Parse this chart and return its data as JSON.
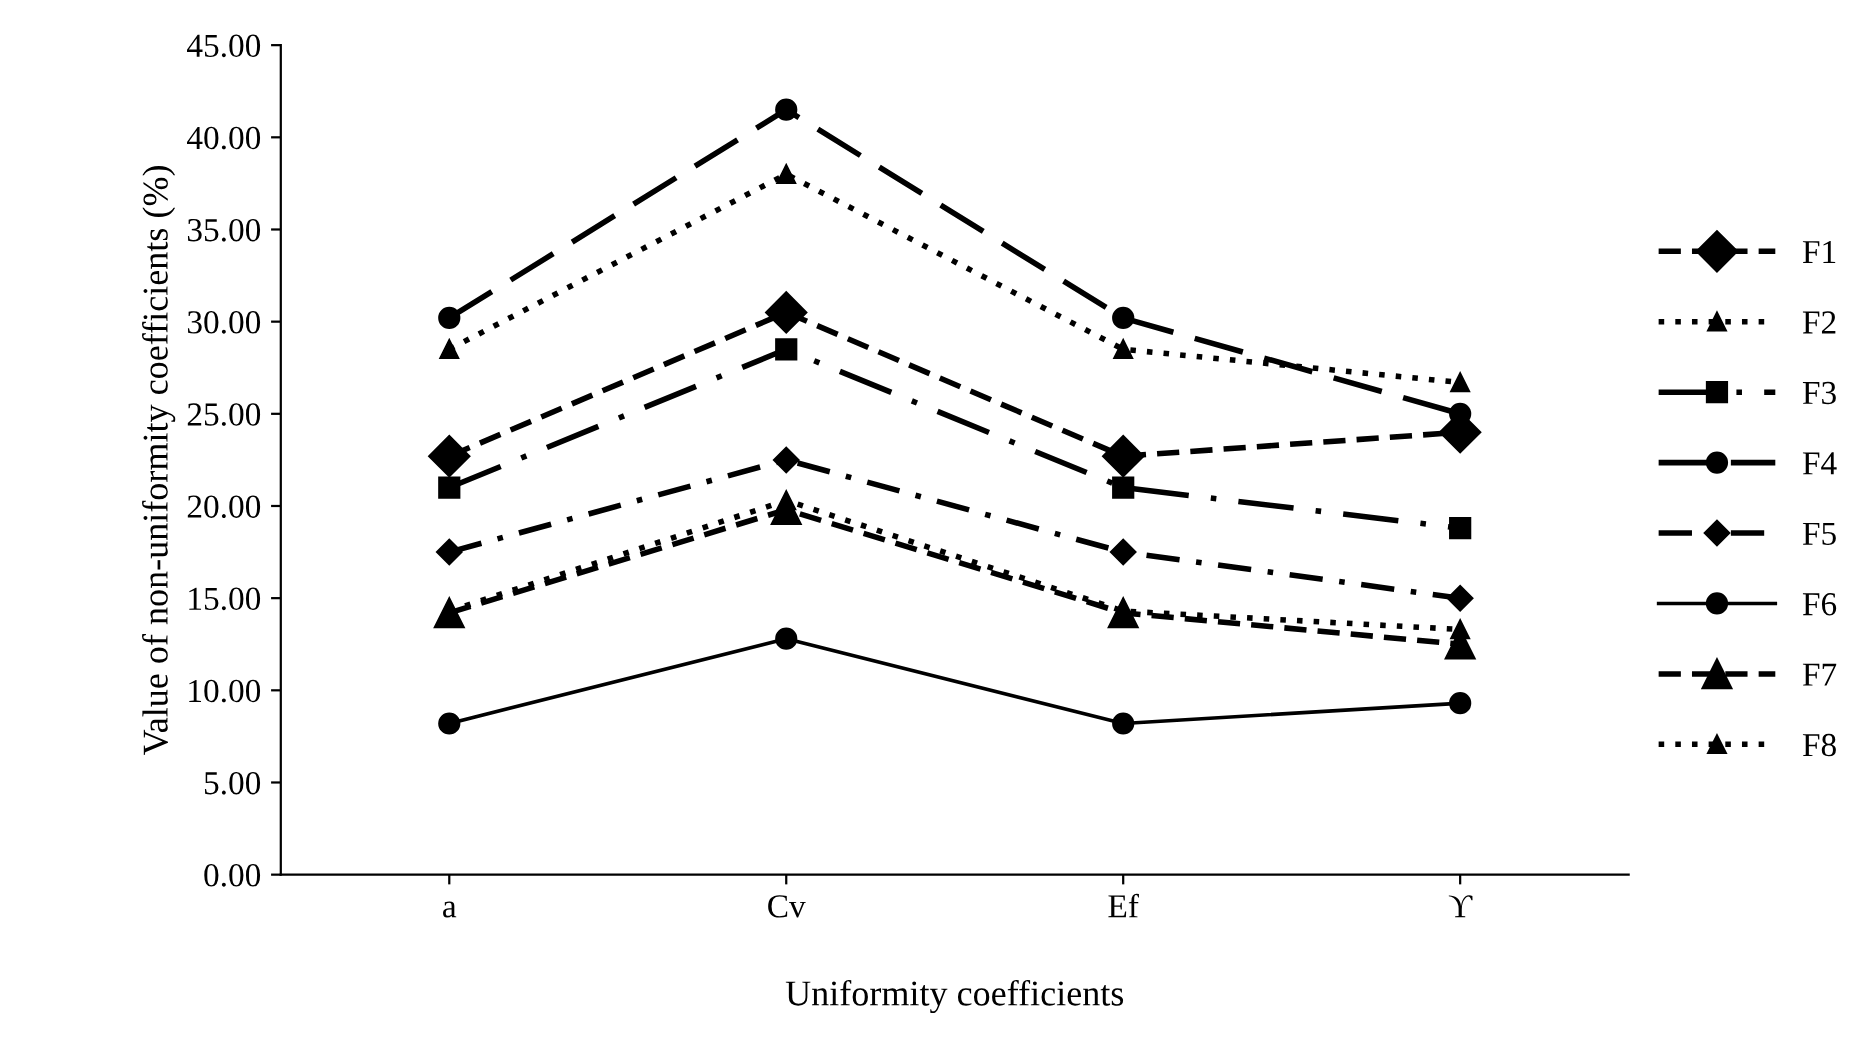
{
  "chart_data": {
    "type": "line",
    "xlabel": "Uniformity coefficients",
    "ylabel": "Value of non-uniformity coefficients (%)",
    "categories": [
      "a",
      "Cv",
      "Ef",
      "ϒ"
    ],
    "series": [
      {
        "name": "F1",
        "color": "#000000",
        "values": [
          22.7,
          30.5,
          22.7,
          24.0
        ],
        "marker": "diamond",
        "line_style": "dashed"
      },
      {
        "name": "F2",
        "color": "#000000",
        "values": [
          28.5,
          38.0,
          28.5,
          26.7
        ],
        "marker": "triangle",
        "line_style": "dotted"
      },
      {
        "name": "F3",
        "color": "#000000",
        "values": [
          21.0,
          28.5,
          21.0,
          18.8
        ],
        "marker": "square",
        "line_style": "longdashdot"
      },
      {
        "name": "F4",
        "color": "#000000",
        "values": [
          30.2,
          41.5,
          30.2,
          25.0
        ],
        "marker": "circle",
        "line_style": "longdash"
      },
      {
        "name": "F5",
        "color": "#000000",
        "values": [
          17.5,
          22.5,
          17.5,
          15.0
        ],
        "marker": "diamond",
        "line_style": "dashdot"
      },
      {
        "name": "F6",
        "color": "#000000",
        "values": [
          8.2,
          12.8,
          8.2,
          9.3
        ],
        "marker": "circle",
        "line_style": "solid"
      },
      {
        "name": "F7",
        "color": "#000000",
        "values": [
          14.2,
          19.8,
          14.2,
          12.5
        ],
        "marker": "triangle",
        "line_style": "dashed"
      },
      {
        "name": "F8",
        "color": "#000000",
        "values": [
          14.3,
          20.3,
          14.3,
          13.3
        ],
        "marker": "triangle",
        "line_style": "dotted"
      }
    ],
    "ylim": [
      0,
      45
    ],
    "yticks": [
      {
        "value": 0,
        "label": "0.00"
      },
      {
        "value": 5,
        "label": "5.00"
      },
      {
        "value": 10,
        "label": "10.00"
      },
      {
        "value": 15,
        "label": "15.00"
      },
      {
        "value": 20,
        "label": "20.00"
      },
      {
        "value": 25,
        "label": "25.00"
      },
      {
        "value": 30,
        "label": "30.00"
      },
      {
        "value": 35,
        "label": "35.00"
      },
      {
        "value": 40,
        "label": "40.00"
      },
      {
        "value": 45,
        "label": "45.00"
      }
    ],
    "grid": false,
    "legend": "right"
  }
}
